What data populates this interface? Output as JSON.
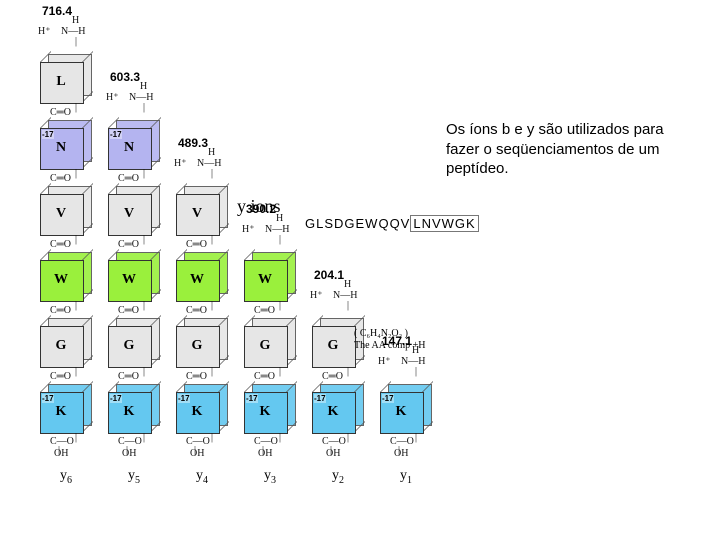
{
  "caption": "Os íons b e y são utilizados para fazer o seqüenciamentos de um peptídeo.",
  "y_ions_title": "y ions",
  "sequence_prefix": "GLSDGEWQQV",
  "sequence_boxed": "LNVWGK",
  "top_bond_h": "H",
  "top_bond_nh": "N—H",
  "top_bond_hplus": "H⁺",
  "mid_bond": "C═O",
  "terminal_line1": "C—O",
  "terminal_line2": "OH",
  "aa_note_line1": "( C₆H₄N₂O₂ )",
  "aa_note_line2": "The AA comp +H",
  "colors": {
    "gray": "#e6e6e6",
    "purple": "#b4b4f0",
    "green": "#9af03c",
    "cyan": "#64c8f0"
  },
  "columns": [
    {
      "pos": "c1",
      "mass": "716.4",
      "y_label": "y",
      "y_sub": "6",
      "top_bonds": true,
      "cubes": [
        {
          "letter": "L",
          "color": "gray",
          "badge": ""
        },
        {
          "letter": "N",
          "color": "purple",
          "badge": "-17"
        },
        {
          "letter": "V",
          "color": "gray",
          "badge": ""
        },
        {
          "letter": "W",
          "color": "green",
          "badge": ""
        },
        {
          "letter": "G",
          "color": "gray",
          "badge": ""
        },
        {
          "letter": "K",
          "color": "cyan",
          "badge": "-17"
        }
      ]
    },
    {
      "pos": "c2",
      "mass": "603.3",
      "y_label": "y",
      "y_sub": "5",
      "top_bonds": true,
      "cubes": [
        {
          "letter": "N",
          "color": "purple",
          "badge": "-17"
        },
        {
          "letter": "V",
          "color": "gray",
          "badge": ""
        },
        {
          "letter": "W",
          "color": "green",
          "badge": ""
        },
        {
          "letter": "G",
          "color": "gray",
          "badge": ""
        },
        {
          "letter": "K",
          "color": "cyan",
          "badge": "-17"
        }
      ]
    },
    {
      "pos": "c3",
      "mass": "489.3",
      "y_label": "y",
      "y_sub": "4",
      "top_bonds": true,
      "cubes": [
        {
          "letter": "V",
          "color": "gray",
          "badge": ""
        },
        {
          "letter": "W",
          "color": "green",
          "badge": ""
        },
        {
          "letter": "G",
          "color": "gray",
          "badge": ""
        },
        {
          "letter": "K",
          "color": "cyan",
          "badge": "-17"
        }
      ]
    },
    {
      "pos": "c4",
      "mass": "390.2",
      "y_label": "y",
      "y_sub": "3",
      "top_bonds": true,
      "cubes": [
        {
          "letter": "W",
          "color": "green",
          "badge": ""
        },
        {
          "letter": "G",
          "color": "gray",
          "badge": ""
        },
        {
          "letter": "K",
          "color": "cyan",
          "badge": "-17"
        }
      ]
    },
    {
      "pos": "c5",
      "mass": "204.1",
      "y_label": "y",
      "y_sub": "2",
      "top_bonds": true,
      "cubes": [
        {
          "letter": "G",
          "color": "gray",
          "badge": ""
        },
        {
          "letter": "K",
          "color": "cyan",
          "badge": "-17"
        }
      ]
    },
    {
      "pos": "c6",
      "mass": "147.1",
      "y_label": "y",
      "y_sub": "1",
      "top_bonds": true,
      "cubes": [
        {
          "letter": "K",
          "color": "cyan",
          "badge": "-17"
        }
      ]
    }
  ],
  "layout": {
    "bottom_baseline": 478,
    "cube_row_height": 66,
    "cube_height": 52,
    "mid_bond_height": 14,
    "terminal_height": 42,
    "top_bond_height": 38,
    "mass_above_topbond": 12
  }
}
